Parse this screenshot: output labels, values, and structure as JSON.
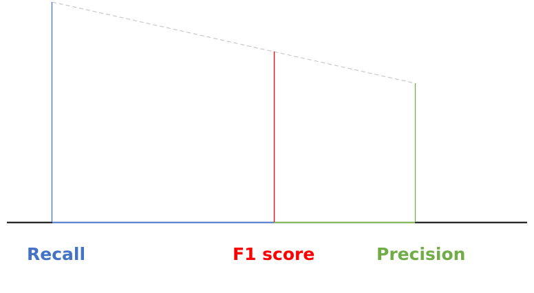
{
  "labels": {
    "recall": "Recall",
    "f1": "F1 score",
    "precision": "Precision"
  },
  "colors": {
    "recall": "#4472c4",
    "f1": "#ff0000",
    "precision": "#70ad47",
    "baseline": "#000000",
    "dashed_line": "#c8c8c8"
  }
}
